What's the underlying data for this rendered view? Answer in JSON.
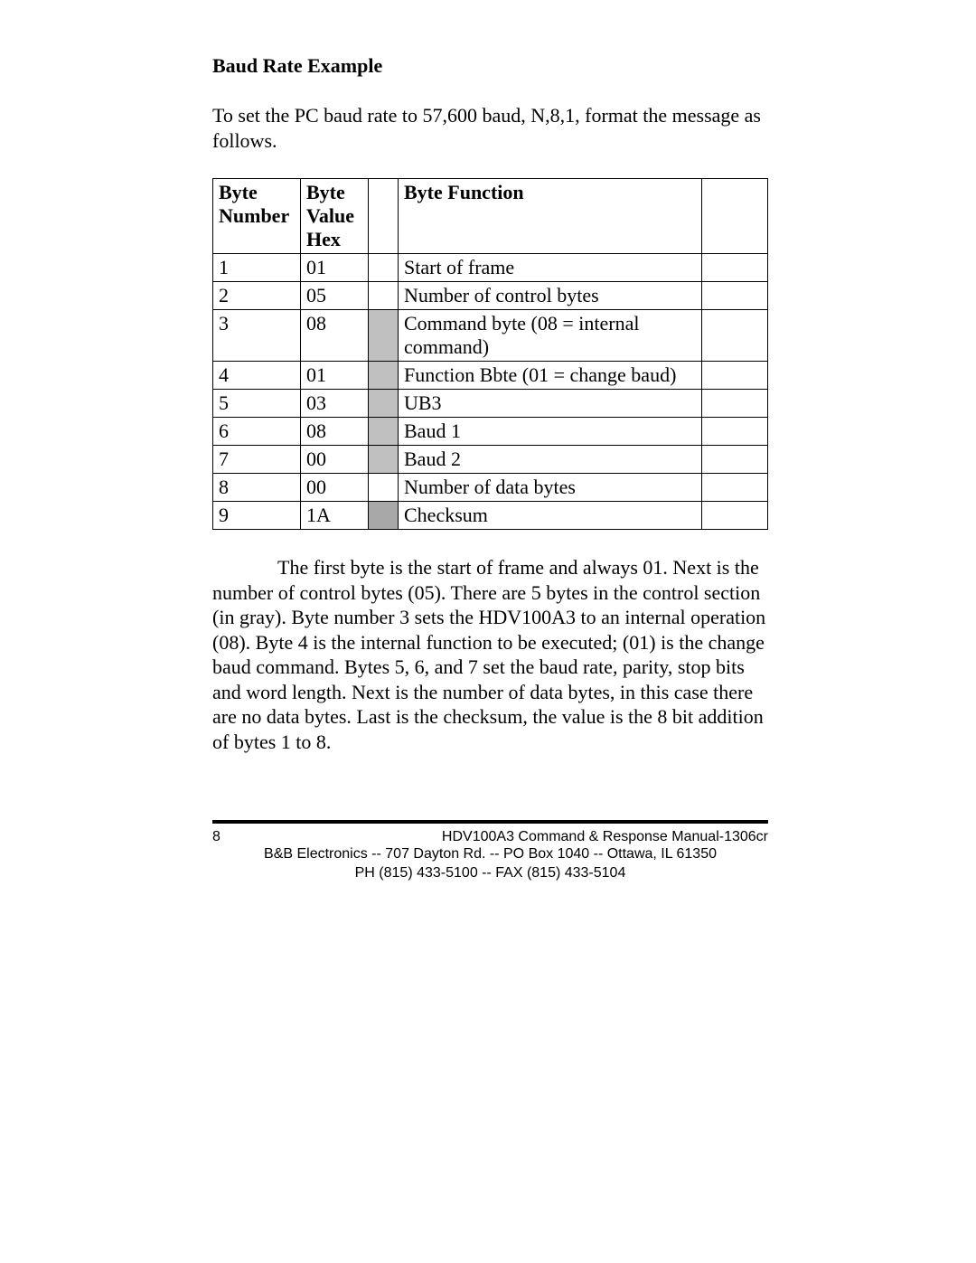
{
  "heading": "Baud Rate Example",
  "intro": "To set the PC baud rate to 57,600 baud, N,8,1, format the message as follows.",
  "table": {
    "head": {
      "num": "Byte Number",
      "val": "Byte Value Hex",
      "func": "Byte Function"
    },
    "shade_light_color": "#c0c0c0",
    "shade_dark_color": "#a8a8a8",
    "rows": [
      {
        "n": "1",
        "v": "01",
        "shade": "",
        "f": "Start of frame"
      },
      {
        "n": "2",
        "v": "05",
        "shade": "",
        "f": "Number of control bytes"
      },
      {
        "n": "3",
        "v": "08",
        "shade": "light",
        "f": "Command byte (08 = internal command)"
      },
      {
        "n": "4",
        "v": "01",
        "shade": "light",
        "f": "Function Bbte (01 = change baud)"
      },
      {
        "n": "5",
        "v": "03",
        "shade": "light",
        "f": "UB3"
      },
      {
        "n": "6",
        "v": "08",
        "shade": "light",
        "f": "Baud 1"
      },
      {
        "n": "7",
        "v": "00",
        "shade": "light",
        "f": "Baud 2"
      },
      {
        "n": "8",
        "v": "00",
        "shade": "",
        "f": "Number of data bytes"
      },
      {
        "n": "9",
        "v": "1A",
        "shade": "dark",
        "f": "Checksum"
      }
    ]
  },
  "explain": "The first byte is the start of frame and always 01. Next is the number of control bytes (05). There are 5 bytes in the control section (in gray). Byte number 3 sets the HDV100A3 to an internal operation (08). Byte 4 is the internal function to be executed; (01) is the change baud command. Bytes 5, 6, and 7 set the baud rate, parity, stop bits and word length. Next is the number of data bytes, in this case there are no data bytes. Last is the checksum, the value is the 8 bit addition of bytes 1 to 8.",
  "footer": {
    "page_number": "8",
    "manual": "HDV100A3 Command & Response Manual-1306cr",
    "address": "B&B Electronics -- 707 Dayton Rd. -- PO Box 1040 -- Ottawa, IL 61350",
    "phone": "PH (815) 433-5100 -- FAX (815) 433-5104"
  }
}
